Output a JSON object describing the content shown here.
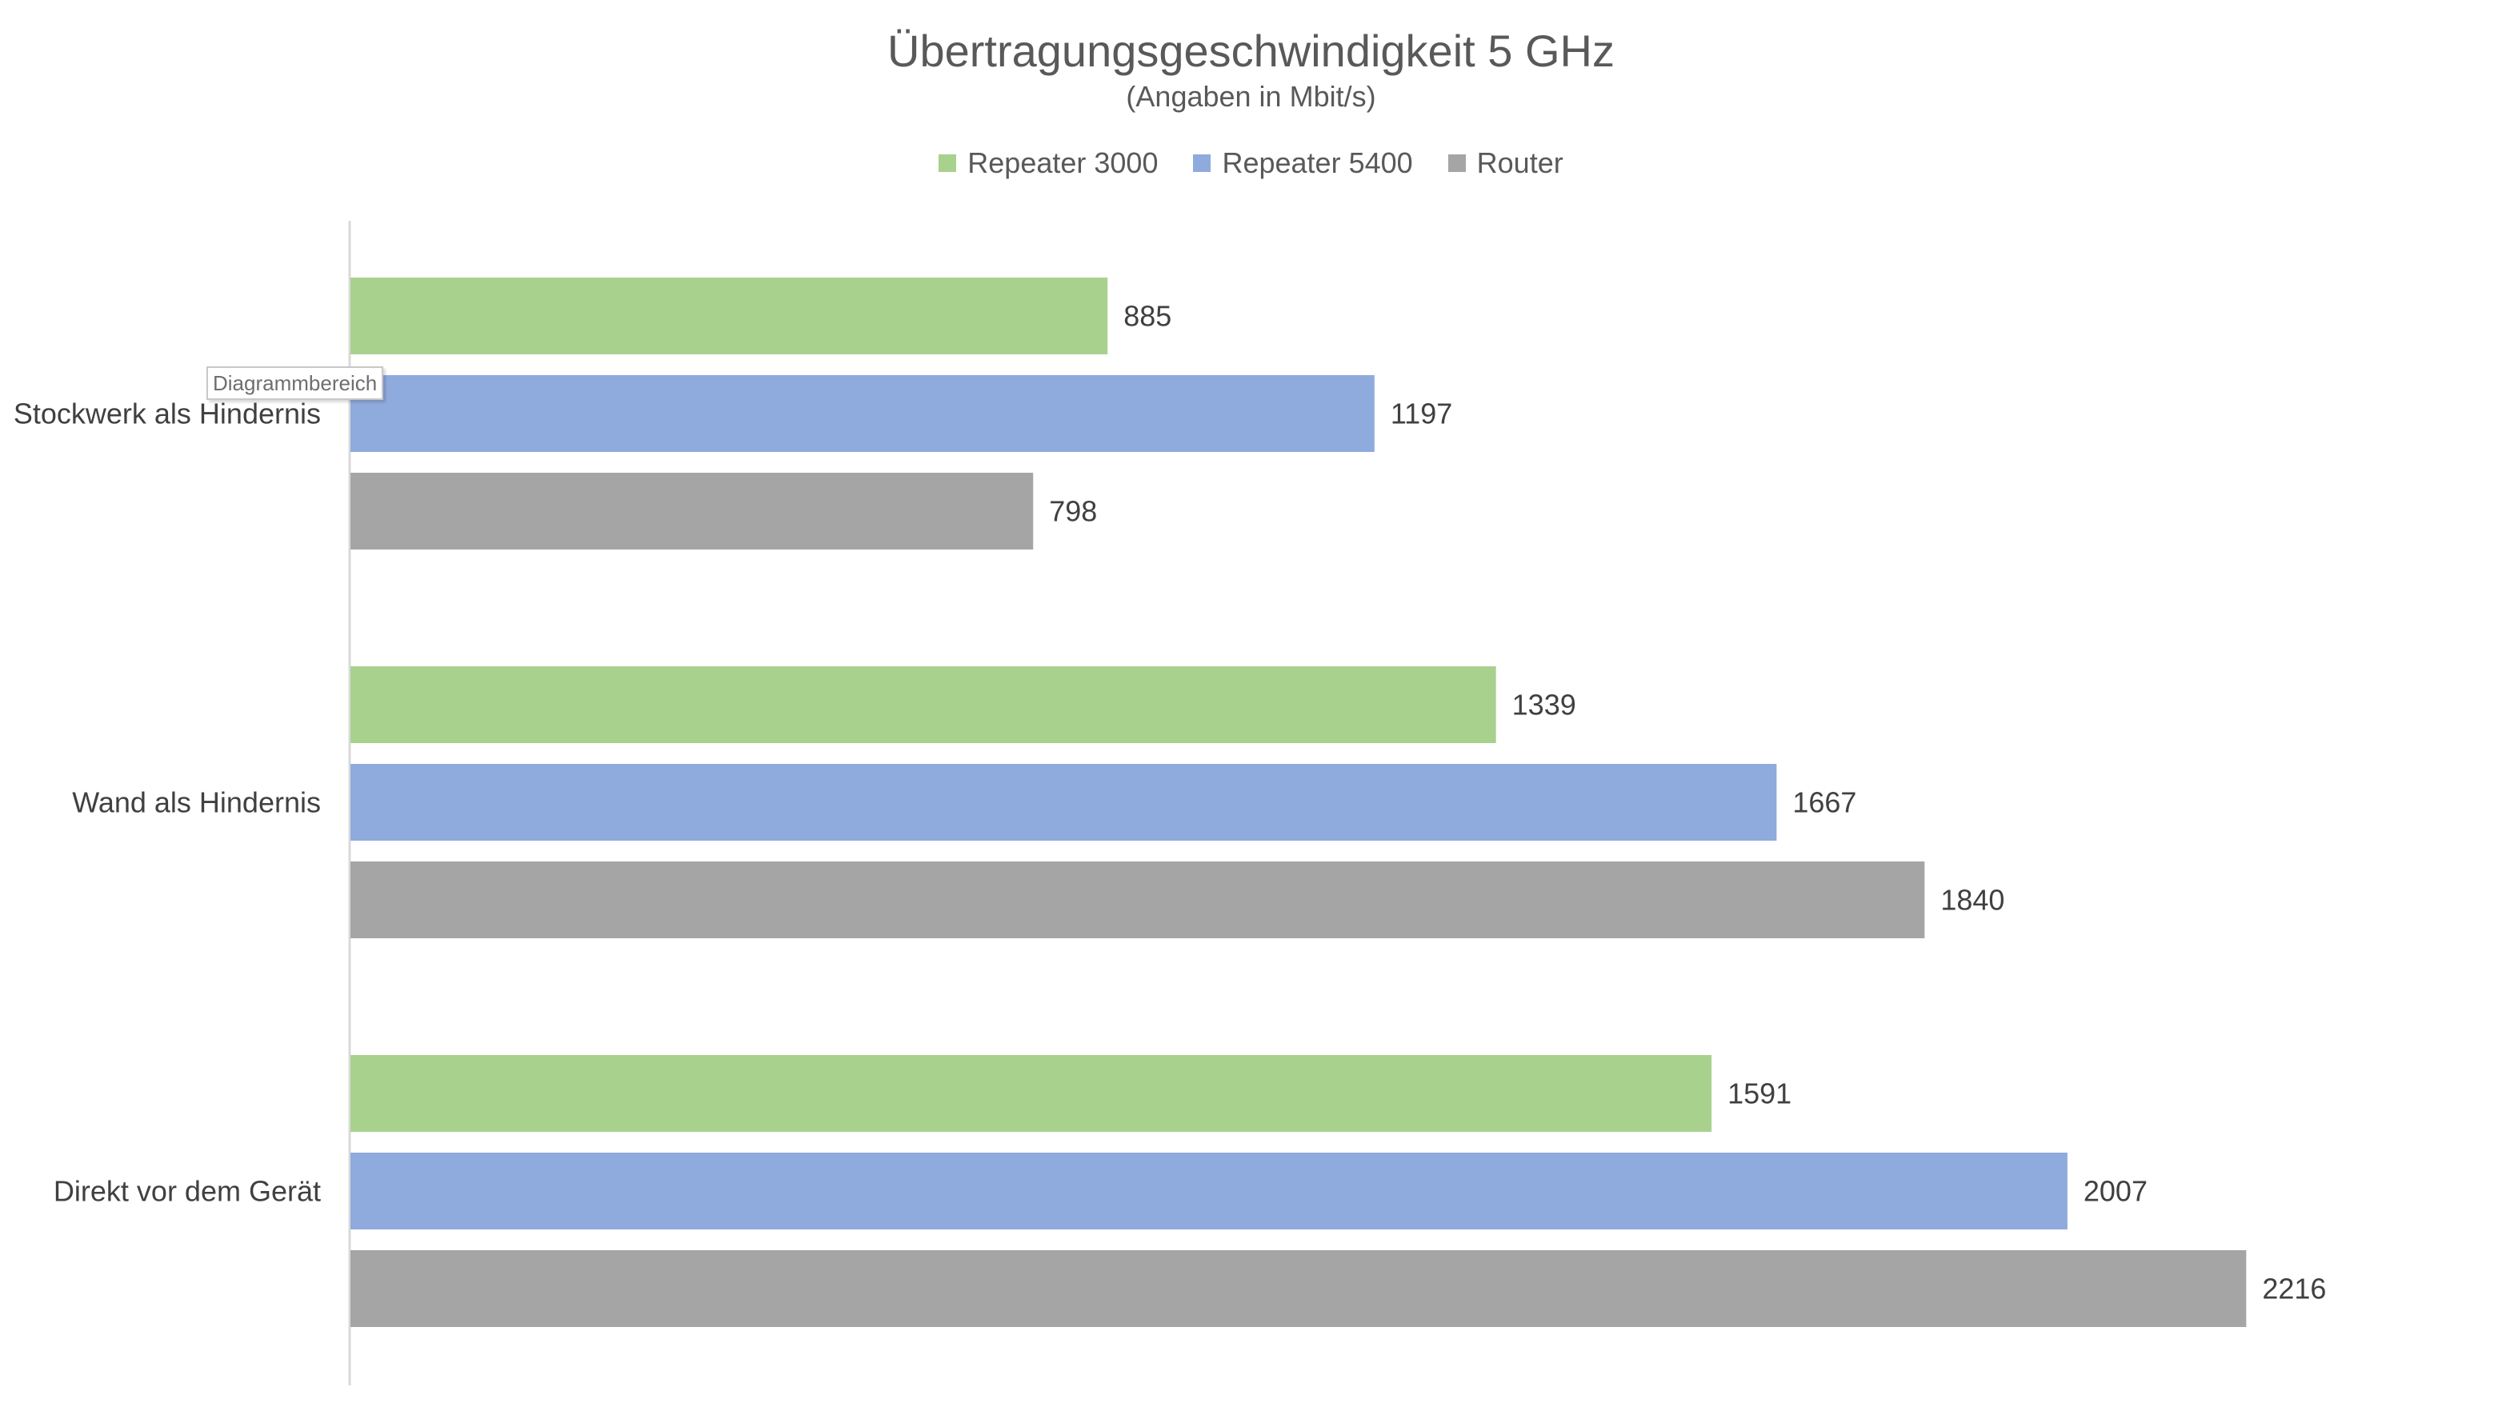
{
  "chart_data": {
    "type": "bar",
    "orientation": "horizontal",
    "title": "Übertragungsgeschwindigkeit 5 GHz",
    "subtitle": "(Angaben in Mbit/s)",
    "categories": [
      "Stockwerk als Hindernis",
      "Wand als Hindernis",
      "Direkt vor dem Gerät"
    ],
    "series": [
      {
        "name": "Repeater 3000",
        "color": "#a9d18e",
        "values": [
          885,
          1339,
          1591
        ]
      },
      {
        "name": "Repeater 5400",
        "color": "#8faadc",
        "values": [
          1197,
          1667,
          2007
        ]
      },
      {
        "name": "Router",
        "color": "#a5a5a5",
        "values": [
          798,
          1840,
          2216
        ]
      }
    ],
    "xlim": [
      0,
      2500
    ],
    "xlabel": "",
    "ylabel": "",
    "grid": false,
    "data_labels": true,
    "legend_position": "top"
  },
  "tooltip": {
    "text": "Diagrammbereich"
  }
}
